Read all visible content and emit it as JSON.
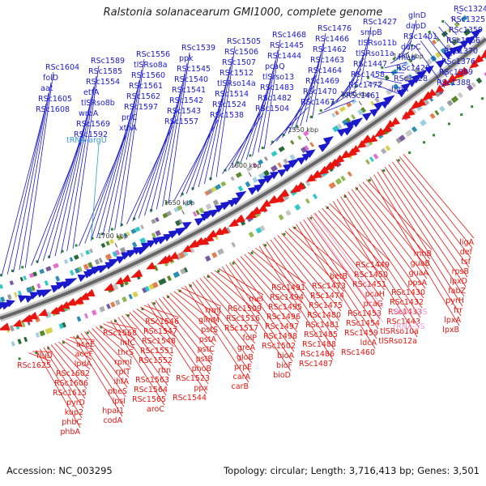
{
  "title": "Ralstonia solanacearum GMI1000, complete genome",
  "footer": {
    "accession": "Accession: NC_003295",
    "summary": "Topology: circular; Length: 3,716,413 bp; Genes: 3,501"
  },
  "colors": {
    "forward": "#1a1acc",
    "reverse": "#e8150f",
    "rna": "#3399cc",
    "rna_reverse": "#f09ad0",
    "backbone": "#666666",
    "kbp_label": "#333333"
  },
  "kbp_marks": [
    "1450 kbp",
    "1500 kbp",
    "1550 kbp",
    "1600 kbp",
    "1650 kbp",
    "1700 kbp"
  ],
  "forward_labels": [
    "RSc1324",
    "RSc1325",
    "RSc1359",
    "RSc1366",
    "RSc1370",
    "RSc1376",
    "RSc1389",
    "RSc1388",
    "glnD",
    "dapD",
    "RSc1401",
    "dapC",
    "map",
    "RSc1420",
    "RSc1428",
    "hipA",
    "RSc1427",
    "smpB",
    "tlSRso11b",
    "tlSRso11a",
    "RSc1447",
    "RSc1458",
    "RSc1472",
    "RSc1461",
    "RSc1476",
    "RSc1466",
    "RSc1462",
    "RSc1463",
    "RSc1464",
    "RSc1469",
    "RSc1470",
    "RSc1467",
    "RSc1468",
    "RSc1445",
    "RSc1444",
    "pcaQ",
    "tlSrso13",
    "RSc1483",
    "RSc1482",
    "RSc1504",
    "RSc1505",
    "RSc1506",
    "RSc1507",
    "RSc1512",
    "tlSRso14a",
    "RSc1514",
    "RSc1524",
    "RSc1538",
    "RSc1539",
    "ppk",
    "RSc1545",
    "RSc1540",
    "RSc1541",
    "RSc1542",
    "RSc1543",
    "RSc1557",
    "RSc1556",
    "tlSRso8a",
    "RSc1560",
    "RSc1561",
    "RSc1562",
    "RSc1597",
    "prlC",
    "xthA",
    "RSc1589",
    "RSc1585",
    "RSc1554",
    "etfA",
    "tlSRso8b",
    "wrbA",
    "RSc1569",
    "RSc1592",
    "RSc1604",
    "folD",
    "aat",
    "RSc1605",
    "RSc1608"
  ],
  "rna_label": "tRNA-argU",
  "reverse_labels": [
    "ligA",
    "def",
    "tsf",
    "rpsB",
    "lpxD",
    "fabZ",
    "pyrH",
    "frr",
    "lpxA",
    "lpxB",
    "rnhB",
    "guaB",
    "guaA",
    "ppsA",
    "RSc1430",
    "RSc1432",
    "RSc1433",
    "RSc1443",
    "tlSRso10a",
    "tlSRso12a",
    "RSc1449",
    "RSc1450",
    "RSc1451",
    "pcaH",
    "pcaG",
    "RSc1453",
    "RSc1454",
    "RSc1459",
    "ldcA",
    "RSc1460",
    "betB",
    "RSc1473",
    "RSc1474",
    "RSc1475",
    "RSc1480",
    "RSc1481",
    "RSc1485",
    "RSc1488",
    "RSc1486",
    "RSc1487",
    "RSc1491",
    "RSc1494",
    "RSc1495",
    "RSc1496",
    "RSc1497",
    "RSc1498",
    "RSc1502",
    "bioA",
    "bioF",
    "bioD",
    "mel",
    "RSc1509",
    "RSc1516",
    "RSc1517",
    "folP",
    "greA",
    "gloB",
    "prpE",
    "carA",
    "carB",
    "rrmJ",
    "glmM",
    "pstS",
    "pstA",
    "pstC",
    "pstB",
    "phoB",
    "RSc1523",
    "ppx",
    "RSc1544",
    "RSc1546",
    "RSc1547",
    "RSc1548",
    "RSc1551",
    "RSc1552",
    "rbn",
    "RSc1563",
    "RSc1564",
    "RSc1565",
    "aroC",
    "RSc1568",
    "infC",
    "thrS",
    "rpmI",
    "rplT",
    "ihfA",
    "pheS",
    "lpsI",
    "hpaI1",
    "codA",
    "aceE",
    "aceF",
    "lpdA",
    "RSc1602",
    "RSc1606",
    "RSc1615",
    "pyrD",
    "kup2",
    "phbC",
    "phbA",
    "rluD",
    "RSc1625"
  ],
  "rna_reverse_labels": [
    "rRNA-23S",
    "rRNA-5S"
  ]
}
